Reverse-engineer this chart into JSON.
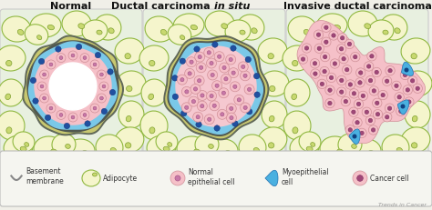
{
  "bg_color": "#f0efe8",
  "panel_bg": "#e8f0e0",
  "panel_border": "#cccccc",
  "adipocyte_fill": "#f5f5cc",
  "adipocyte_edge": "#90b840",
  "adipocyte_nuc_fill": "#c8d870",
  "adipocyte_nuc_edge": "#80a030",
  "blue_layer": "#7ac8e8",
  "basement_color": "#8090a0",
  "basement_dark": "#505850",
  "lumen_color": "#ffffff",
  "epi_fill": "#f5c0c8",
  "epi_edge": "#d09098",
  "epi_nuc_fill": "#c878a8",
  "epi_nuc_edge": "#a05080",
  "myo_cell_fill": "#2060a0",
  "myo_cell_edge": "#1040808",
  "cancer_fill": "#f5c0c8",
  "cancer_edge": "#d09098",
  "cancer_nuc_fill": "#a04878",
  "cancer_nuc_edge": "#803060",
  "invasive_blob_fill": "#f5c0c8",
  "invasive_blob_edge": "#d09098",
  "myofrag_fill": "#4ab0e0",
  "myofrag_edge": "#2070b0",
  "legend_bg": "#f8f8f4",
  "legend_edge": "#bbbbbb",
  "title_color": "#222222",
  "trends_color": "#999999",
  "panel_titles": [
    "Normal",
    "Ductal carcinoma ",
    "in situ",
    "Invasive ductal carcinoma"
  ]
}
